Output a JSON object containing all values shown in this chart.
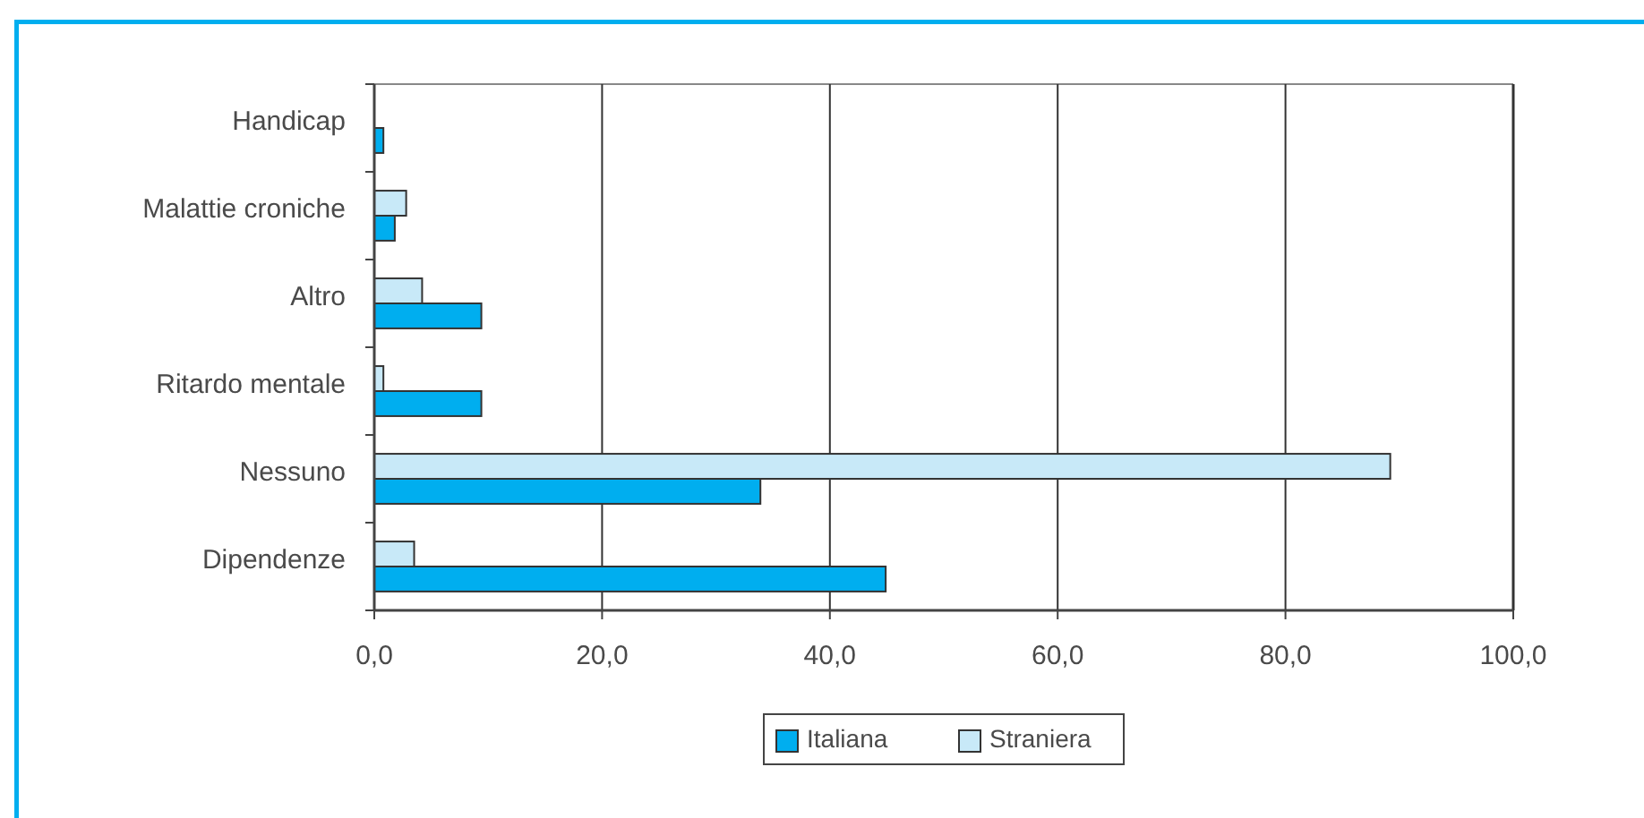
{
  "chart_data": {
    "type": "bar",
    "orientation": "horizontal",
    "categories": [
      "Handicap",
      "Malattie croniche",
      "Altro",
      "Ritardo mentale",
      "Nessuno",
      "Dipendenze"
    ],
    "series": [
      {
        "name": "Italiana",
        "color": "#00aeef",
        "values": [
          0.8,
          1.8,
          9.4,
          9.4,
          33.9,
          44.9
        ]
      },
      {
        "name": "Straniera",
        "color": "#c8e9f8",
        "values": [
          null,
          2.8,
          4.2,
          0.8,
          89.2,
          3.5
        ]
      }
    ],
    "xlim": [
      0,
      100
    ],
    "xticks": [
      {
        "value": 0,
        "label": "0,0"
      },
      {
        "value": 20,
        "label": "20,0"
      },
      {
        "value": 40,
        "label": "40,0"
      },
      {
        "value": 60,
        "label": "60,0"
      },
      {
        "value": 80,
        "label": "80,0"
      },
      {
        "value": 100,
        "label": "100,0"
      }
    ],
    "grid": "x",
    "legend": "bottom"
  }
}
